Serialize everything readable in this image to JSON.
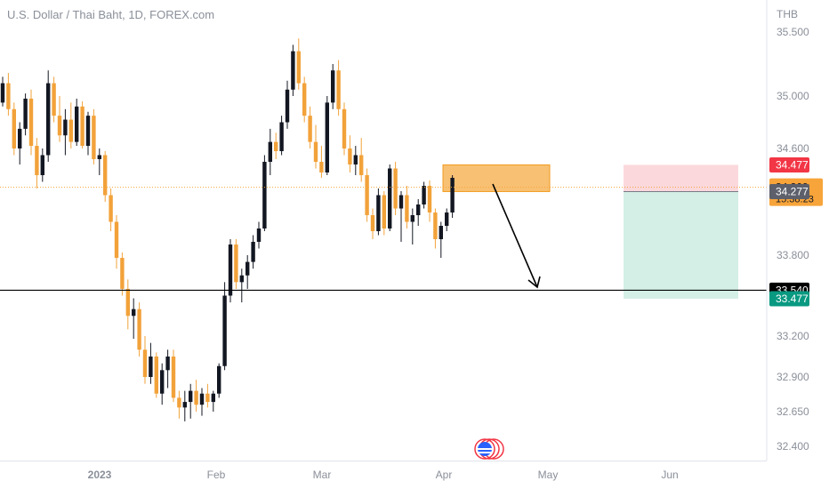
{
  "header": {
    "symbol": "U.S. Dollar / Thai Baht, 1D, FOREX.com"
  },
  "currency": "THB",
  "colors": {
    "up": "#131722",
    "down": "#f2a23a",
    "tp_zone": "#d4efe6",
    "sl_zone": "#fbd8dc",
    "supply_zone": "#f7b55a",
    "sl_tag": "#f23645",
    "tp_tag": "#089981",
    "price_tag": "#f7a43a",
    "entry_tag": "#5d606b",
    "level_tag": "#000000"
  },
  "chart_data": {
    "type": "candlestick",
    "title": "U.S. Dollar / Thai Baht, 1D, FOREX.com",
    "y_ticks": [
      35.5,
      35.0,
      34.6,
      33.8,
      33.2,
      32.9,
      32.65,
      32.4
    ],
    "y_tick_labels": [
      "35.500",
      "35.000",
      "34.600",
      "33.800",
      "33.200",
      "32.900",
      "32.650",
      "32.400"
    ],
    "x_labels": [
      "2023",
      "Feb",
      "Mar",
      "Apr",
      "May",
      "Jun"
    ],
    "ohlc": [
      [
        34.95,
        35.15,
        34.92,
        35.1
      ],
      [
        35.1,
        35.18,
        34.85,
        34.9
      ],
      [
        34.9,
        34.95,
        34.55,
        34.6
      ],
      [
        34.6,
        34.8,
        34.48,
        34.75
      ],
      [
        34.75,
        35.02,
        34.7,
        34.98
      ],
      [
        34.98,
        35.05,
        34.55,
        34.62
      ],
      [
        34.62,
        34.68,
        34.3,
        34.4
      ],
      [
        34.4,
        34.6,
        34.35,
        34.55
      ],
      [
        34.55,
        35.2,
        34.5,
        35.1
      ],
      [
        35.1,
        35.15,
        34.8,
        34.85
      ],
      [
        34.85,
        35.0,
        34.65,
        34.7
      ],
      [
        34.7,
        34.9,
        34.55,
        34.82
      ],
      [
        34.82,
        34.95,
        34.6,
        34.65
      ],
      [
        34.65,
        34.98,
        34.62,
        34.92
      ],
      [
        34.92,
        34.96,
        34.6,
        34.62
      ],
      [
        34.62,
        34.88,
        34.55,
        34.85
      ],
      [
        34.85,
        34.9,
        34.48,
        34.52
      ],
      [
        34.52,
        34.6,
        34.4,
        34.55
      ],
      [
        34.55,
        34.58,
        34.2,
        34.25
      ],
      [
        34.25,
        34.3,
        33.98,
        34.05
      ],
      [
        34.05,
        34.1,
        33.7,
        33.78
      ],
      [
        33.78,
        33.82,
        33.5,
        33.55
      ],
      [
        33.55,
        33.62,
        33.25,
        33.35
      ],
      [
        33.35,
        33.48,
        33.18,
        33.4
      ],
      [
        33.4,
        33.45,
        33.05,
        33.1
      ],
      [
        33.1,
        33.2,
        32.85,
        32.9
      ],
      [
        32.9,
        33.15,
        32.85,
        33.05
      ],
      [
        33.05,
        33.08,
        32.75,
        32.78
      ],
      [
        32.78,
        33.0,
        32.7,
        32.95
      ],
      [
        32.95,
        33.1,
        32.82,
        33.05
      ],
      [
        33.05,
        33.1,
        32.72,
        32.75
      ],
      [
        32.75,
        32.8,
        32.6,
        32.68
      ],
      [
        32.68,
        32.8,
        32.58,
        32.72
      ],
      [
        32.72,
        32.85,
        32.6,
        32.8
      ],
      [
        32.8,
        32.88,
        32.65,
        32.7
      ],
      [
        32.7,
        32.82,
        32.62,
        32.78
      ],
      [
        32.78,
        32.85,
        32.68,
        32.72
      ],
      [
        32.72,
        32.8,
        32.65,
        32.78
      ],
      [
        32.78,
        33.0,
        32.75,
        32.98
      ],
      [
        32.98,
        33.6,
        32.95,
        33.5
      ],
      [
        33.5,
        33.92,
        33.45,
        33.88
      ],
      [
        33.88,
        33.92,
        33.55,
        33.6
      ],
      [
        33.6,
        33.7,
        33.45,
        33.65
      ],
      [
        33.65,
        33.8,
        33.55,
        33.75
      ],
      [
        33.75,
        33.95,
        33.7,
        33.9
      ],
      [
        33.9,
        34.05,
        33.85,
        34.0
      ],
      [
        34.0,
        34.55,
        33.98,
        34.5
      ],
      [
        34.5,
        34.75,
        34.4,
        34.65
      ],
      [
        34.65,
        34.72,
        34.52,
        34.58
      ],
      [
        34.58,
        34.85,
        34.55,
        34.8
      ],
      [
        34.8,
        35.12,
        34.75,
        35.05
      ],
      [
        35.05,
        35.4,
        35.0,
        35.35
      ],
      [
        35.35,
        35.45,
        35.05,
        35.1
      ],
      [
        35.1,
        35.15,
        34.8,
        34.85
      ],
      [
        34.85,
        34.92,
        34.6,
        34.65
      ],
      [
        34.65,
        34.78,
        34.45,
        34.5
      ],
      [
        34.5,
        34.62,
        34.38,
        34.42
      ],
      [
        34.42,
        35.0,
        34.4,
        34.95
      ],
      [
        34.95,
        35.25,
        34.9,
        35.2
      ],
      [
        35.2,
        35.28,
        34.85,
        34.9
      ],
      [
        34.9,
        34.95,
        34.55,
        34.6
      ],
      [
        34.6,
        34.7,
        34.42,
        34.48
      ],
      [
        34.48,
        34.62,
        34.4,
        34.55
      ],
      [
        34.55,
        34.68,
        34.35,
        34.4
      ],
      [
        34.4,
        34.45,
        34.05,
        34.1
      ],
      [
        34.1,
        34.15,
        33.92,
        33.98
      ],
      [
        33.98,
        34.3,
        33.95,
        34.25
      ],
      [
        34.25,
        34.28,
        33.95,
        34.0
      ],
      [
        34.0,
        34.48,
        33.98,
        34.45
      ],
      [
        34.45,
        34.5,
        34.1,
        34.15
      ],
      [
        34.15,
        34.28,
        33.9,
        34.25
      ],
      [
        34.25,
        34.32,
        34.0,
        34.05
      ],
      [
        34.05,
        34.15,
        33.88,
        34.1
      ],
      [
        34.1,
        34.22,
        34.02,
        34.18
      ],
      [
        34.18,
        34.35,
        34.15,
        34.32
      ],
      [
        34.32,
        34.36,
        34.05,
        34.12
      ],
      [
        34.12,
        34.15,
        33.85,
        33.92
      ],
      [
        33.92,
        34.05,
        33.78,
        34.02
      ],
      [
        34.02,
        34.15,
        33.98,
        34.12
      ],
      [
        34.12,
        34.4,
        34.08,
        34.38
      ]
    ],
    "trade": {
      "stop_loss": 34.477,
      "entry": 34.277,
      "take_profit": 33.477
    },
    "levels": [
      {
        "price": 33.54,
        "label": "33.540"
      }
    ],
    "current_price": {
      "price": 34.309,
      "label": "34.309",
      "countdown": "15:38:23"
    },
    "supply_zone": {
      "top": 34.477,
      "bottom": 34.277
    },
    "price_tags": {
      "stop_loss": "34.477",
      "entry": "34.277",
      "take_profit": "33.477"
    }
  }
}
